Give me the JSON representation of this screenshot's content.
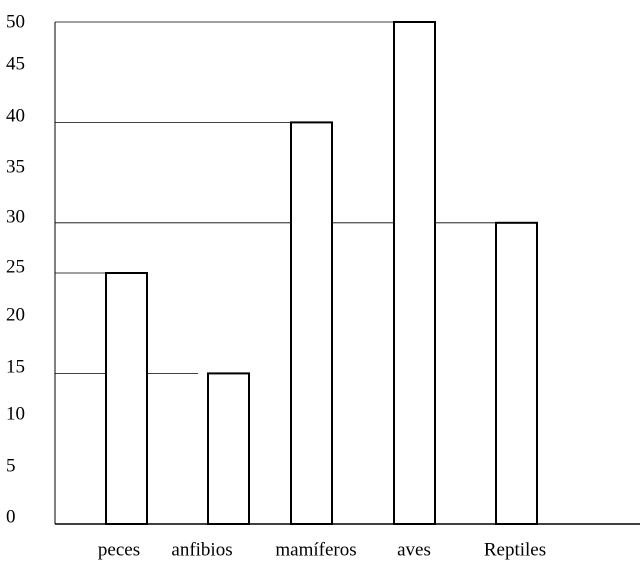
{
  "chart_data": {
    "type": "bar",
    "title": "",
    "xlabel": "",
    "ylabel": "",
    "categories": [
      "peces",
      "anfibios",
      "mamíferos",
      "aves",
      "Reptiles"
    ],
    "values": [
      25,
      15,
      40,
      50,
      30
    ],
    "ylim": [
      0,
      50
    ],
    "yticks": [
      "0",
      "5",
      "10",
      "15",
      "20",
      "25",
      "30",
      "35",
      "40",
      "45",
      "50"
    ],
    "grid": false,
    "legend": "none",
    "bar_fill": "#ffffff",
    "bar_stroke": "#000000"
  }
}
